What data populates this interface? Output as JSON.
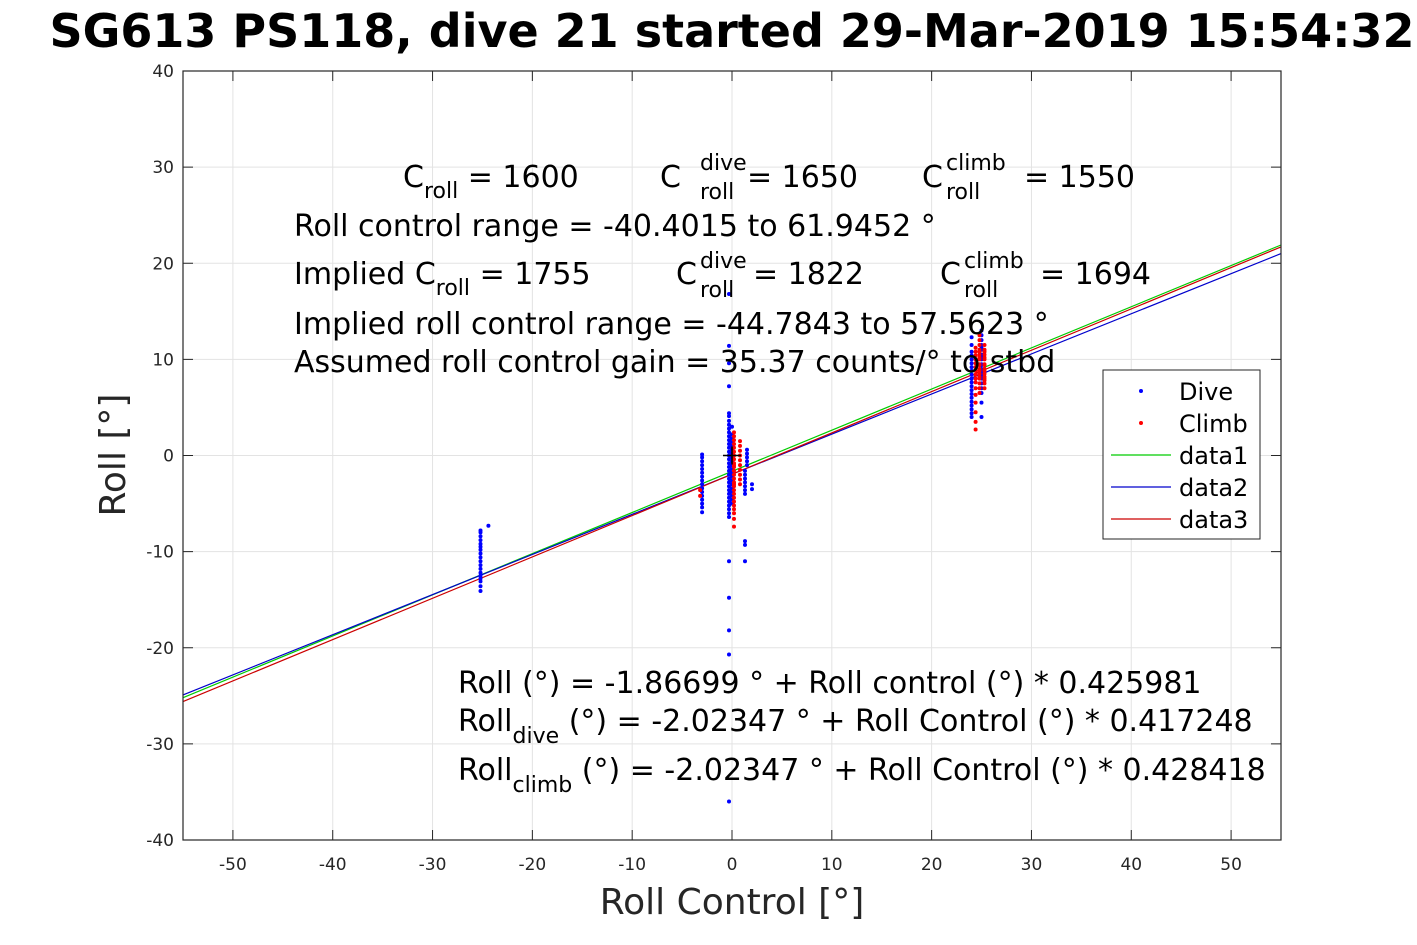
{
  "chart_data": {
    "type": "scatter",
    "title": "SG613 PS118, dive 21 started 29-Mar-2019 15:54:32",
    "xlabel": "Roll Control [°]",
    "ylabel": "Roll [°]",
    "xlim": [
      -55,
      55
    ],
    "ylim": [
      -40,
      40
    ],
    "x_ticks": [
      -50,
      -40,
      -30,
      -20,
      -10,
      0,
      10,
      20,
      30,
      40,
      50
    ],
    "y_ticks": [
      -40,
      -30,
      -20,
      -10,
      0,
      10,
      20,
      30,
      40
    ],
    "x_tick_labels": [
      "-50",
      "-40",
      "-30",
      "-20",
      "-10",
      "0",
      "10",
      "20",
      "30",
      "40",
      "50"
    ],
    "y_tick_labels": [
      "-40",
      "-30",
      "-20",
      "-10",
      "0",
      "10",
      "20",
      "30",
      "40"
    ],
    "grid": true,
    "legend_position": "right",
    "series": [
      {
        "name": "Dive",
        "kind": "points",
        "color": "#0000ff",
        "x": [
          -25.2,
          -25.2,
          -25.2,
          -25.2,
          -25.2,
          -25.2,
          -25.2,
          -25.2,
          -25.2,
          -25.2,
          -25.2,
          -25.2,
          -25.2,
          -25.2,
          -25.2,
          -25.2,
          -25.2,
          -25.2,
          -24.4,
          -3.0,
          -3.0,
          -3.0,
          -3.0,
          -3.0,
          -3.0,
          -3.0,
          -3.0,
          -3.0,
          -3.0,
          -3.0,
          -3.0,
          -3.0,
          -3.0,
          -3.0,
          -3.0,
          -0.3,
          -0.3,
          -0.3,
          -0.3,
          -0.3,
          -0.3,
          -0.3,
          -0.3,
          -0.3,
          -0.3,
          -0.3,
          -0.3,
          -0.3,
          -0.3,
          -0.3,
          -0.3,
          -0.3,
          -0.3,
          -0.3,
          -0.3,
          -0.3,
          -0.3,
          -0.3,
          -0.3,
          -0.3,
          -0.3,
          -0.3,
          -0.3,
          -0.3,
          -0.3,
          -0.3,
          -0.3,
          -0.3,
          -0.3,
          -0.3,
          -0.3,
          -0.3,
          0.0,
          0.0,
          0.0,
          0.0,
          0.0,
          0.0,
          0.0,
          0.0,
          0.0,
          0.0,
          0.0,
          0.0,
          0.0,
          0.0,
          0.0,
          0.0,
          0.0,
          0.0,
          0.0,
          0.0,
          1.3,
          1.3,
          1.3,
          1.3,
          1.3,
          1.3,
          1.3,
          1.3,
          1.3,
          1.3,
          1.5,
          1.5,
          1.5,
          1.5,
          1.5,
          2.0,
          2.0,
          24.0,
          24.0,
          24.0,
          24.0,
          24.0,
          24.0,
          24.0,
          24.0,
          24.0,
          24.0,
          24.0,
          24.0,
          24.0,
          24.0,
          24.0,
          24.0,
          24.0,
          24.0,
          24.0,
          24.0,
          25.0,
          25.0,
          25.0,
          25.0,
          25.0,
          25.0,
          25.0,
          25.0,
          25.0,
          25.0,
          25.0,
          25.0,
          25.0,
          25.0,
          25.0,
          25.0,
          25.0,
          25.0,
          25.0,
          25.0,
          25.0
        ],
        "y": [
          -14.1,
          -13.6,
          -13.1,
          -12.8,
          -12.5,
          -12.2,
          -11.8,
          -11.4,
          -11.0,
          -10.6,
          -10.2,
          -9.8,
          -9.5,
          -9.2,
          -8.8,
          -8.4,
          -8.0,
          -7.8,
          -7.3,
          -5.9,
          -5.4,
          -5.0,
          -4.6,
          -4.2,
          -3.8,
          -3.4,
          -3.0,
          -2.6,
          -2.2,
          -1.8,
          -1.4,
          -1.0,
          -0.6,
          -0.2,
          0.1,
          -36.0,
          -20.7,
          -18.2,
          -14.8,
          -11.0,
          -6.4,
          -6.0,
          -5.6,
          -5.2,
          -4.8,
          -4.4,
          -4.0,
          -3.6,
          -3.2,
          -2.8,
          -2.4,
          -2.0,
          -1.6,
          -1.2,
          -0.8,
          -0.4,
          0.0,
          0.4,
          0.8,
          1.2,
          1.6,
          2.0,
          2.4,
          2.8,
          3.2,
          3.6,
          4.1,
          4.4,
          7.2,
          9.6,
          11.4,
          16.8,
          -5.0,
          -4.6,
          -4.2,
          -3.8,
          -3.4,
          -3.0,
          -2.6,
          -2.2,
          -1.8,
          -1.4,
          -1.0,
          -0.6,
          -0.2,
          0.2,
          0.6,
          1.0,
          1.4,
          1.8,
          2.2,
          3.0,
          -11.0,
          -9.3,
          -8.9,
          -4.0,
          -3.6,
          -3.2,
          -2.8,
          -2.4,
          -2.0,
          -1.6,
          -1.0,
          -0.6,
          -0.2,
          0.2,
          0.6,
          -3.5,
          -3.0,
          4.0,
          4.4,
          4.8,
          5.2,
          5.6,
          6.0,
          6.4,
          6.8,
          7.2,
          7.6,
          8.0,
          8.4,
          8.8,
          9.2,
          9.6,
          10.0,
          10.4,
          10.8,
          11.5,
          12.3,
          4.0,
          5.5,
          6.5,
          7.0,
          7.5,
          8.0,
          8.5,
          9.0,
          9.5,
          10.0,
          10.5,
          11.0,
          11.5,
          12.0,
          12.5,
          13.0,
          8.2,
          8.6,
          9.4,
          10.2,
          11.2
        ]
      },
      {
        "name": "Climb",
        "kind": "points",
        "color": "#ff0000",
        "x": [
          -3.2,
          -3.2,
          0.2,
          0.2,
          0.2,
          0.2,
          0.2,
          0.2,
          0.2,
          0.2,
          0.2,
          0.2,
          0.2,
          0.2,
          0.2,
          0.2,
          0.2,
          0.2,
          0.2,
          0.2,
          0.2,
          0.2,
          0.2,
          0.2,
          0.2,
          0.2,
          0.2,
          0.2,
          0.8,
          0.8,
          0.8,
          0.8,
          0.8,
          0.8,
          0.8,
          0.8,
          0.8,
          0.8,
          24.4,
          24.4,
          24.4,
          24.4,
          24.4,
          24.4,
          24.4,
          24.4,
          24.4,
          24.4,
          24.4,
          24.4,
          24.4,
          24.4,
          24.4,
          24.4,
          24.8,
          24.8,
          24.8,
          24.8,
          24.8,
          24.8,
          24.8,
          24.8,
          24.8,
          24.8,
          24.8,
          24.8,
          24.8,
          24.8,
          24.8,
          24.8,
          24.8,
          24.8,
          25.3,
          25.3,
          25.3,
          25.3,
          25.3,
          25.3,
          25.3,
          25.3,
          25.3,
          25.3,
          25.3,
          25.3,
          25.3,
          25.3,
          25.3,
          25.3
        ],
        "y": [
          -4.2,
          -3.6,
          -7.4,
          -6.6,
          -6.0,
          -5.6,
          -5.2,
          -4.8,
          -4.4,
          -4.0,
          -3.6,
          -3.2,
          -2.8,
          -2.4,
          -2.0,
          -1.6,
          -1.2,
          -0.8,
          -0.4,
          0.0,
          0.4,
          0.8,
          1.2,
          1.6,
          2.0,
          2.4,
          -3.0,
          -1.0,
          -3.0,
          -2.5,
          -2.0,
          -1.5,
          -1.0,
          -0.5,
          0.0,
          0.5,
          1.0,
          1.5,
          2.7,
          3.5,
          4.5,
          5.5,
          6.3,
          7.0,
          7.6,
          8.0,
          8.4,
          8.8,
          9.2,
          9.6,
          10.0,
          10.4,
          10.8,
          11.2,
          6.5,
          7.0,
          7.5,
          8.0,
          8.5,
          9.0,
          9.5,
          10.0,
          10.5,
          11.0,
          11.5,
          12.0,
          12.5,
          8.2,
          8.8,
          9.4,
          10.2,
          10.8,
          7.0,
          7.5,
          8.0,
          8.5,
          9.0,
          9.5,
          10.0,
          10.5,
          11.0,
          11.5,
          8.2,
          8.8,
          9.4,
          10.2,
          10.8,
          7.8
        ]
      },
      {
        "name": "data1",
        "kind": "line",
        "color": "#00cc00",
        "x": [
          -55,
          55
        ],
        "y": [
          -25.2,
          21.9
        ]
      },
      {
        "name": "data2",
        "kind": "line",
        "color": "#0000cc",
        "x": [
          -55,
          55
        ],
        "y": [
          -24.9,
          21.0
        ]
      },
      {
        "name": "data3",
        "kind": "line",
        "color": "#cc0000",
        "x": [
          -55,
          55
        ],
        "y": [
          -25.6,
          21.7
        ]
      }
    ],
    "marker": {
      "x": [
        0
      ],
      "y": [
        0
      ],
      "symbol": "+",
      "color": "#000000"
    },
    "annotations": {
      "c_roll": {
        "main": "C",
        "sub": "roll",
        "rest": " = 1600"
      },
      "c_roll_dive": {
        "main": "C",
        "sup": "dive",
        "sub": "roll",
        "rest": " = 1650"
      },
      "c_roll_climb": {
        "main": "C",
        "sup": "climb",
        "sub": "roll",
        "rest": " = 1550"
      },
      "range": "Roll control range = -40.4015 to 61.9452 °",
      "implied_c_roll": {
        "prefix": "Implied C",
        "sub": "roll",
        "rest": " = 1755"
      },
      "implied_c_roll_dive": {
        "main": "C",
        "sup": "dive",
        "sub": "roll",
        "rest": " = 1822"
      },
      "implied_c_roll_climb": {
        "main": "C",
        "sup": "climb",
        "sub": "roll",
        "rest": " = 1694"
      },
      "implied_range": "Implied roll control range = -44.7843 to 57.5623 °",
      "gain": "Assumed roll control gain = 35.37 counts/° to stbd",
      "eq1": "Roll (°) = -1.86699 ° + Roll control (°) * 0.425981",
      "eq2": {
        "main": "Roll",
        "sub": "dive",
        "rest": " (°) = -2.02347 ° + Roll Control (°) * 0.417248"
      },
      "eq3": {
        "main": "Roll",
        "sub": "climb",
        "rest": " (°) = -2.02347 ° + Roll Control (°) * 0.428418"
      }
    }
  }
}
